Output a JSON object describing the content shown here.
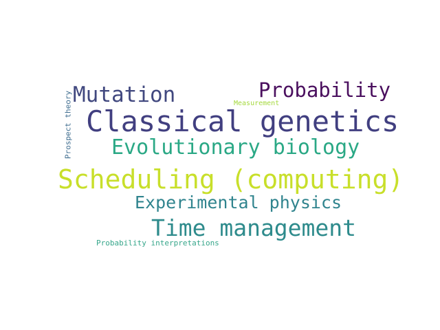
{
  "word_cloud": {
    "words": [
      {
        "key": "classical",
        "text": "Classical genetics",
        "color": "#413f80"
      },
      {
        "key": "scheduling",
        "text": "Scheduling (computing)",
        "color": "#c8df2a"
      },
      {
        "key": "evolution",
        "text": "Evolutionary biology",
        "color": "#2aa885"
      },
      {
        "key": "time",
        "text": "Time management",
        "color": "#2e8b8c"
      },
      {
        "key": "mutation",
        "text": "Mutation",
        "color": "#41487f"
      },
      {
        "key": "probability",
        "text": "Probability",
        "color": "#4a0f5e"
      },
      {
        "key": "experiment",
        "text": "Experimental physics",
        "color": "#30848e"
      },
      {
        "key": "measure",
        "text": "Measurement",
        "color": "#a5d93e"
      },
      {
        "key": "interpret",
        "text": "Probability interpretations",
        "color": "#36a68a"
      },
      {
        "key": "prospect",
        "text": "Prospect theory",
        "color": "#3f6d8f"
      }
    ]
  }
}
